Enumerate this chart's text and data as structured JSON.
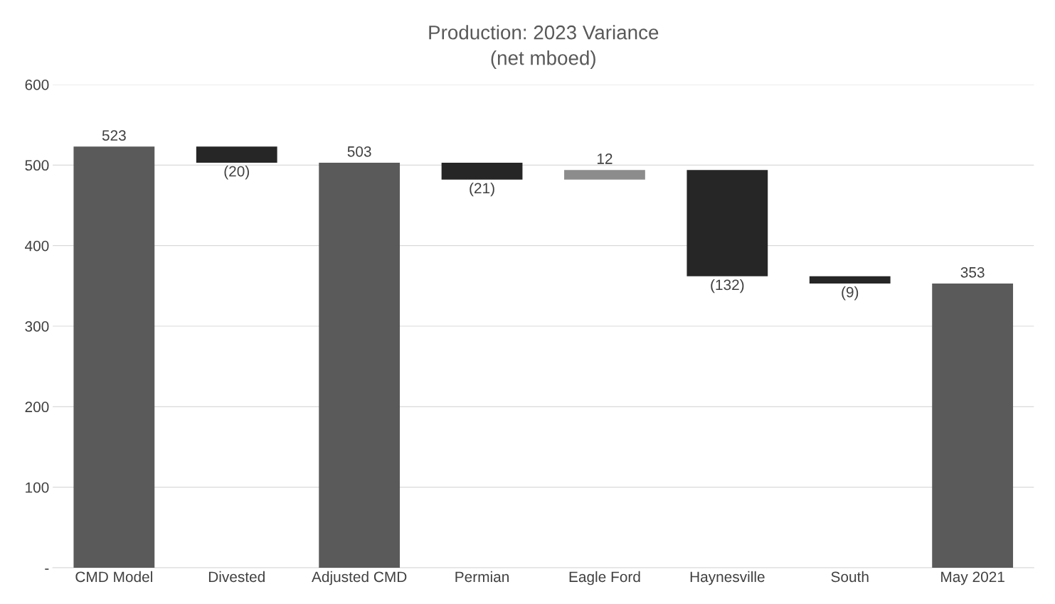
{
  "chart_data": {
    "type": "bar",
    "title": "Production: 2023 Variance\n(net mboed)",
    "categories": [
      "CMD Model",
      "Divested",
      "Adjusted CMD",
      "Permian",
      "Eagle Ford",
      "Haynesville",
      "South",
      "May 2021"
    ],
    "values": [
      523,
      -20,
      503,
      -21,
      12,
      -132,
      -9,
      353
    ],
    "base": [
      0,
      523,
      0,
      503,
      482,
      494,
      362,
      0
    ],
    "colors": [
      "#5a5a5a",
      "#262626",
      "#5a5a5a",
      "#262626",
      "#8c8c8c",
      "#262626",
      "#262626",
      "#5a5a5a"
    ],
    "value_labels": [
      "523",
      "(20)",
      "503",
      "(21)",
      "12",
      "(132)",
      "(9)",
      "353"
    ],
    "ylim": [
      0,
      600
    ],
    "yticks": [
      {
        "value": 0,
        "label": "-"
      },
      100,
      200,
      300,
      400,
      500,
      600
    ],
    "grid": "y",
    "legend": false
  }
}
